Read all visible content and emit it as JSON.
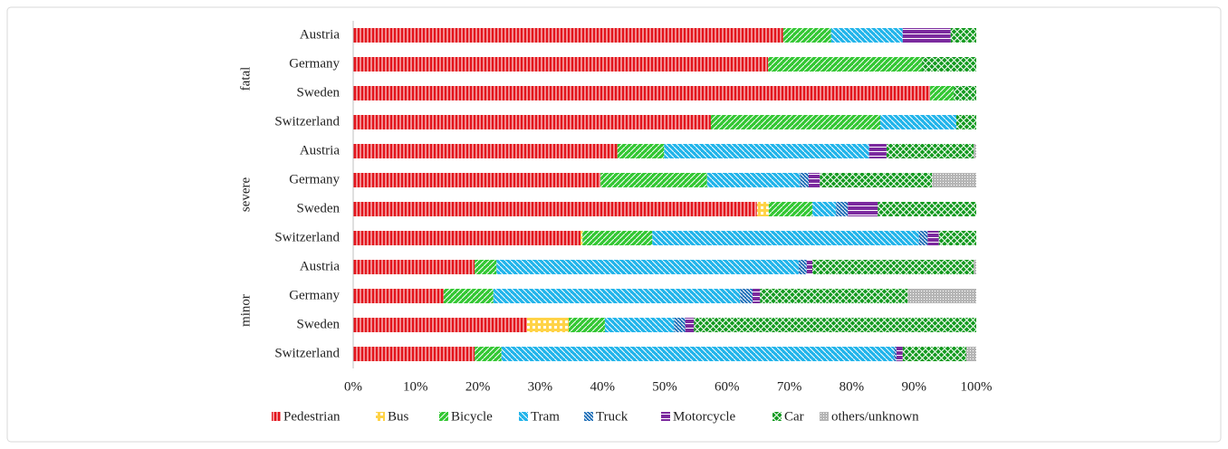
{
  "chart_data": {
    "type": "stacked-bar-horizontal",
    "groups": [
      {
        "label": "fatal",
        "categories": [
          "Austria",
          "Germany",
          "Sweden",
          "Switzerland"
        ]
      },
      {
        "label": "severe",
        "categories": [
          "Austria",
          "Germany",
          "Sweden",
          "Switzerland"
        ]
      },
      {
        "label": "minor",
        "categories": [
          "Austria",
          "Germany",
          "Sweden",
          "Switzerland"
        ]
      }
    ],
    "series": [
      {
        "name": "Pedestrian",
        "color": "#e3141c",
        "values": [
          69,
          66.6,
          92.6,
          57.4,
          42.4,
          39.7,
          64.8,
          36.5,
          19.5,
          14.5,
          27.9,
          19.5
        ]
      },
      {
        "name": "Bus",
        "color": "#ffd347",
        "values": [
          0,
          0,
          0,
          0,
          0,
          0,
          1.9,
          0.3,
          0,
          0,
          6.7,
          0
        ]
      },
      {
        "name": "Bicycle",
        "color": "#33c733",
        "values": [
          7.7,
          24.7,
          3.8,
          27.2,
          7.5,
          17.1,
          7,
          11.2,
          3.5,
          8,
          5.8,
          4.3
        ]
      },
      {
        "name": "Tram",
        "color": "#21b4ea",
        "values": [
          11.5,
          0,
          0,
          12.2,
          32.9,
          14.9,
          3.8,
          42.8,
          48.5,
          39.6,
          11.1,
          63
        ]
      },
      {
        "name": "Truck",
        "color": "#1f6fb8",
        "values": [
          0,
          0,
          0,
          0,
          0,
          1.4,
          1.9,
          1.4,
          1.3,
          2,
          1.8,
          0.4
        ]
      },
      {
        "name": "Motorcycle",
        "color": "#7b2a9e",
        "values": [
          7.7,
          0,
          0,
          0,
          2.8,
          1.8,
          4.8,
          1.8,
          0.9,
          1.2,
          1.4,
          1
        ]
      },
      {
        "name": "Car",
        "color": "#139a1f",
        "values": [
          4.1,
          8.7,
          3.6,
          3.2,
          14,
          18,
          15.8,
          6,
          25.9,
          23.7,
          45.3,
          10.2
        ]
      },
      {
        "name": "others/unknown",
        "color": "#b5b5b5",
        "values": [
          0,
          0,
          0,
          0,
          0.4,
          7.1,
          0,
          0,
          0.4,
          11,
          0,
          1.6
        ]
      }
    ],
    "xlim": [
      0,
      100
    ],
    "xticks": [
      {
        "value": 0,
        "label": "0%"
      },
      {
        "value": 10,
        "label": "10%"
      },
      {
        "value": 20,
        "label": "20%"
      },
      {
        "value": 30,
        "label": "30%"
      },
      {
        "value": 40,
        "label": "40%"
      },
      {
        "value": 50,
        "label": "50%"
      },
      {
        "value": 60,
        "label": "60%"
      },
      {
        "value": 70,
        "label": "70%"
      },
      {
        "value": 80,
        "label": "80%"
      },
      {
        "value": 90,
        "label": "90%"
      },
      {
        "value": 100,
        "label": "100%"
      }
    ],
    "legend": "bottom"
  }
}
